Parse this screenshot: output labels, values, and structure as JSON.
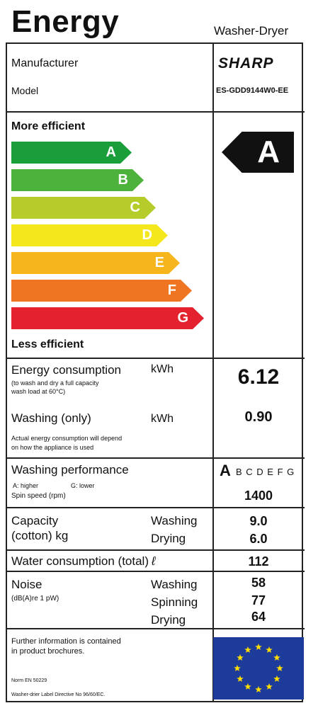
{
  "header": {
    "title": "Energy",
    "product_type": "Washer-Dryer"
  },
  "identity": {
    "manufacturer_label": "Manufacturer",
    "manufacturer": "SHARP",
    "model_label": "Model",
    "model": "ES-GDD9144W0-EE"
  },
  "scale": {
    "top_label": "More efficient",
    "bottom_label": "Less efficient",
    "classes": [
      {
        "letter": "A",
        "color": "#1a9e3a"
      },
      {
        "letter": "B",
        "color": "#4db23b"
      },
      {
        "letter": "C",
        "color": "#b6cc2b"
      },
      {
        "letter": "D",
        "color": "#f4e71c"
      },
      {
        "letter": "E",
        "color": "#f6b51a"
      },
      {
        "letter": "F",
        "color": "#ef7523"
      },
      {
        "letter": "G",
        "color": "#e4212e"
      }
    ],
    "rating": "A"
  },
  "energy": {
    "label": "Energy consumption",
    "unit": "kWh",
    "note1": "(to wash and dry a full capacity",
    "note2": "wash load at 60°C)",
    "value": "6.12"
  },
  "washing_only": {
    "label": "Washing (only)",
    "unit": "kWh",
    "value": "0.90",
    "note1": "Actual energy consumption will depend",
    "note2": "on how the appliance is used"
  },
  "performance": {
    "label": "Washing performance",
    "legend_a": "A: higher",
    "legend_g": "G: lower",
    "rating": "A",
    "others": "B C D E F G",
    "spin_label": "Spin speed (rpm)",
    "spin_value": "1400"
  },
  "capacity": {
    "label1": "Capacity",
    "label2": "(cotton) kg",
    "washing_label": "Washing",
    "washing_value": "9.0",
    "drying_label": "Drying",
    "drying_value": "6.0"
  },
  "water": {
    "label": "Water consumption (total)",
    "unit_icon": "ℓ",
    "value": "112"
  },
  "noise": {
    "label": "Noise",
    "unit": "(dB(A)re 1 pW)",
    "washing_label": "Washing",
    "washing_value": "58",
    "spinning_label": "Spinning",
    "spinning_value": "77",
    "drying_label": "Drying",
    "drying_value": "64"
  },
  "footer": {
    "info1": "Further information is contained",
    "info2": "in product brochures.",
    "norm": "Norm EN 50229",
    "directive": "Washer-drier Label Directive No 96/60/EC."
  },
  "colors": {
    "eu_flag": "#1d3b9a",
    "eu_stars": "#ffdd00"
  }
}
